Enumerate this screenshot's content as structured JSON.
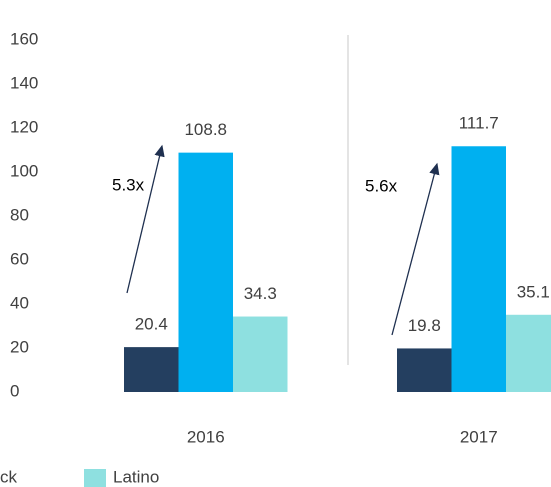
{
  "chart_data": {
    "type": "bar",
    "categories": [
      "2016",
      "2017"
    ],
    "series": [
      {
        "name": "ck",
        "color": "#243f60",
        "values": [
          20.4,
          19.8
        ]
      },
      {
        "color": "#00b0f0",
        "values": [
          108.8,
          111.7
        ]
      },
      {
        "name": "Latino",
        "color": "#8ee0e0",
        "values": [
          34.3,
          35.1
        ]
      }
    ],
    "annotations": [
      "5.3x",
      "5.6x"
    ],
    "ylim": [
      0,
      160
    ],
    "yticks": [
      0,
      20,
      40,
      60,
      80,
      100,
      120,
      140,
      160
    ],
    "grid": false
  }
}
